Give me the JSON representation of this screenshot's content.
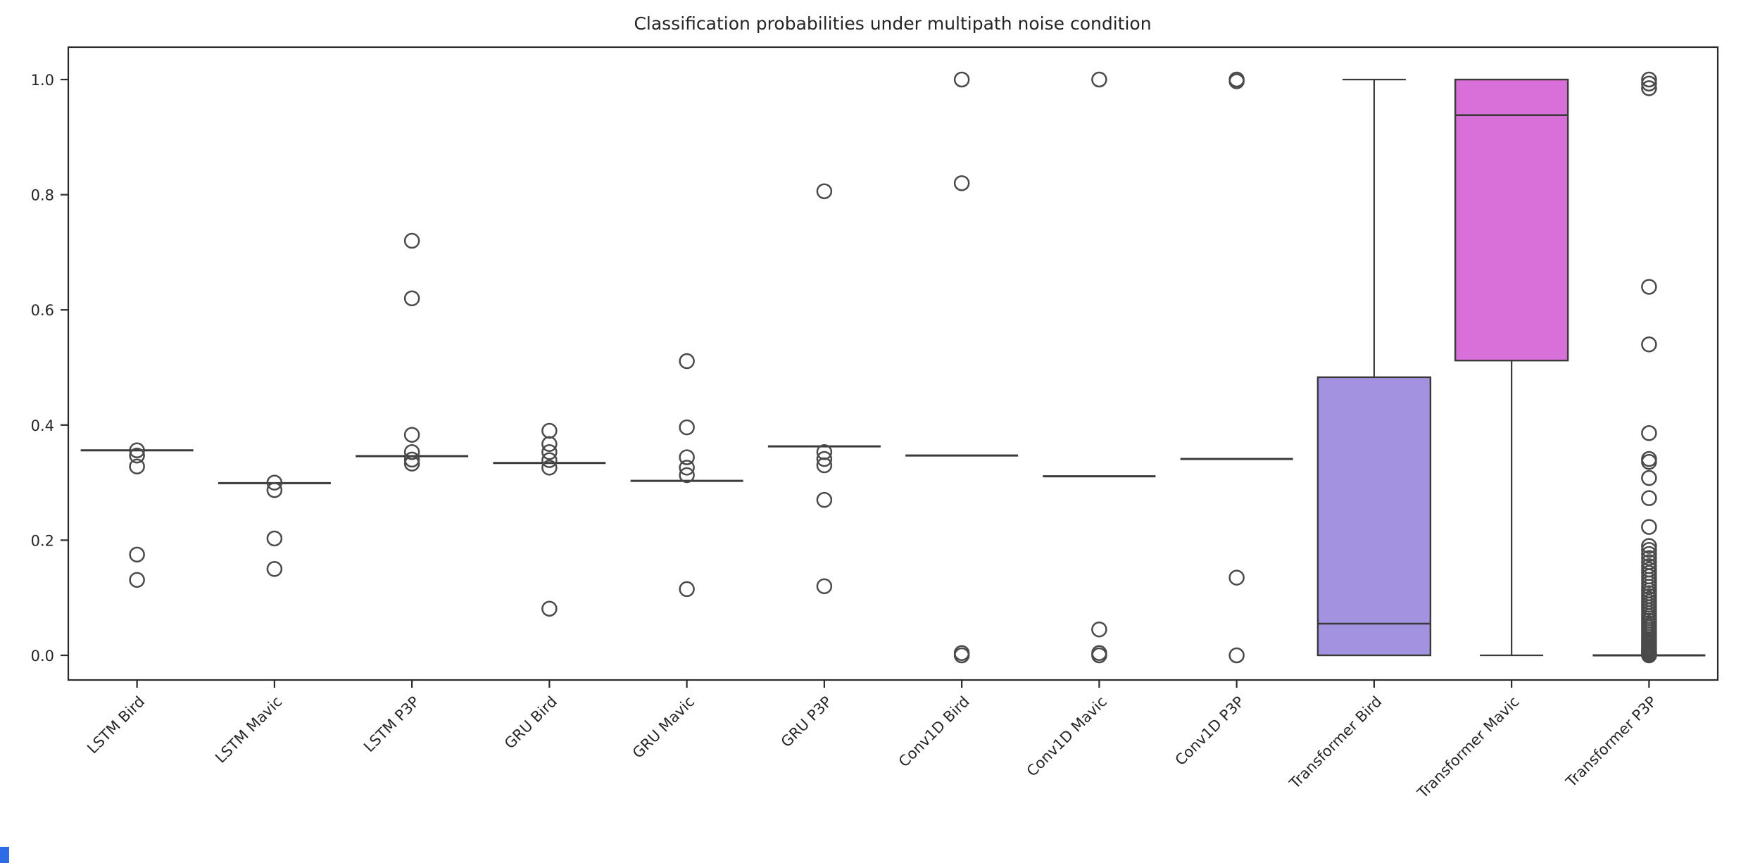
{
  "chart_data": {
    "type": "box",
    "title": "Classification probabilities under multipath noise condition",
    "xlabel": "",
    "ylabel": "",
    "ylim": [
      -0.05,
      1.05
    ],
    "grid": false,
    "legend": "none",
    "xtick_rotation": 45,
    "ytick_labels": [
      "0.0",
      "0.2",
      "0.4",
      "0.6",
      "0.8",
      "1.0"
    ],
    "ytick_values": [
      0.0,
      0.2,
      0.4,
      0.6,
      0.8,
      1.0
    ],
    "categories": [
      "LSTM Bird",
      "LSTM Mavic",
      "LSTM P3P",
      "GRU Bird",
      "GRU Mavic",
      "GRU P3P",
      "Conv1D Bird",
      "Conv1D Mavic",
      "Conv1D P3P",
      "Transformer Bird",
      "Transformer Mavic",
      "Transformer P3P"
    ],
    "boxes": [
      {
        "label": "LSTM Bird",
        "q1": 0.356,
        "median": 0.356,
        "q3": 0.356,
        "whisker_low": 0.356,
        "whisker_high": 0.356,
        "fill": "none",
        "fliers": [
          0.356,
          0.347,
          0.328,
          0.175,
          0.131
        ]
      },
      {
        "label": "LSTM Mavic",
        "q1": 0.299,
        "median": 0.299,
        "q3": 0.299,
        "whisker_low": 0.299,
        "whisker_high": 0.299,
        "fill": "none",
        "fliers": [
          0.3,
          0.287,
          0.203,
          0.15
        ]
      },
      {
        "label": "LSTM P3P",
        "q1": 0.346,
        "median": 0.346,
        "q3": 0.346,
        "whisker_low": 0.346,
        "whisker_high": 0.346,
        "fill": "none",
        "fliers": [
          0.72,
          0.62,
          0.383,
          0.353,
          0.34,
          0.333
        ]
      },
      {
        "label": "GRU Bird",
        "q1": 0.334,
        "median": 0.334,
        "q3": 0.334,
        "whisker_low": 0.334,
        "whisker_high": 0.334,
        "fill": "none",
        "fliers": [
          0.39,
          0.367,
          0.353,
          0.339,
          0.326,
          0.081
        ]
      },
      {
        "label": "GRU Mavic",
        "q1": 0.303,
        "median": 0.303,
        "q3": 0.303,
        "whisker_low": 0.303,
        "whisker_high": 0.303,
        "fill": "none",
        "fliers": [
          0.511,
          0.396,
          0.344,
          0.326,
          0.313,
          0.115
        ]
      },
      {
        "label": "GRU P3P",
        "q1": 0.363,
        "median": 0.363,
        "q3": 0.363,
        "whisker_low": 0.363,
        "whisker_high": 0.363,
        "fill": "none",
        "fliers": [
          0.806,
          0.353,
          0.341,
          0.33,
          0.27,
          0.12
        ]
      },
      {
        "label": "Conv1D Bird",
        "q1": 0.347,
        "median": 0.347,
        "q3": 0.347,
        "whisker_low": 0.347,
        "whisker_high": 0.347,
        "fill": "none",
        "fliers": [
          1.0,
          0.82,
          0.004,
          0.0
        ]
      },
      {
        "label": "Conv1D Mavic",
        "q1": 0.311,
        "median": 0.311,
        "q3": 0.311,
        "whisker_low": 0.311,
        "whisker_high": 0.311,
        "fill": "none",
        "fliers": [
          1.0,
          0.045,
          0.004,
          0.0
        ]
      },
      {
        "label": "Conv1D P3P",
        "q1": 0.341,
        "median": 0.341,
        "q3": 0.341,
        "whisker_low": 0.341,
        "whisker_high": 0.341,
        "fill": "none",
        "fliers": [
          1.0,
          0.997,
          0.135,
          0.0
        ]
      },
      {
        "label": "Transformer Bird",
        "q1": 0.0,
        "median": 0.055,
        "q3": 0.483,
        "whisker_low": 0.0,
        "whisker_high": 1.0,
        "fill": "#a292e0",
        "fliers": []
      },
      {
        "label": "Transformer Mavic",
        "q1": 0.512,
        "median": 0.938,
        "q3": 1.0,
        "whisker_low": 0.0,
        "whisker_high": 1.0,
        "fill": "#d96fd8",
        "fliers": []
      },
      {
        "label": "Transformer P3P",
        "q1": 0.0,
        "median": 0.0,
        "q3": 0.0,
        "whisker_low": 0.0,
        "whisker_high": 0.0,
        "fill": "none",
        "fliers": [
          1.0,
          0.993,
          0.985,
          0.64,
          0.54,
          0.386,
          0.341,
          0.336,
          0.308,
          0.273,
          0.223
        ],
        "fliers_dense": [
          0.19,
          0.183,
          0.176,
          0.169,
          0.162,
          0.155,
          0.149,
          0.143,
          0.137,
          0.131,
          0.125,
          0.119,
          0.113,
          0.108,
          0.103,
          0.098,
          0.093,
          0.088,
          0.083,
          0.078,
          0.073,
          0.068,
          0.064,
          0.06,
          0.056,
          0.052,
          0.048,
          0.044,
          0.04,
          0.036,
          0.032,
          0.028,
          0.025,
          0.022,
          0.019,
          0.016,
          0.013,
          0.011,
          0.009,
          0.007,
          0.005,
          0.004,
          0.003,
          0.002,
          0.001,
          0.0
        ]
      }
    ],
    "colors": {
      "background": "#ffffff",
      "spine": "#2b2b2b",
      "box_line": "#3a3a3a",
      "flier_edge": "#4a4a4a",
      "text": "#262626",
      "transformer_bird_fill": "#a292e0",
      "transformer_mavic_fill": "#d96fd8",
      "corner_mark_blue": "#2e6be6"
    }
  }
}
